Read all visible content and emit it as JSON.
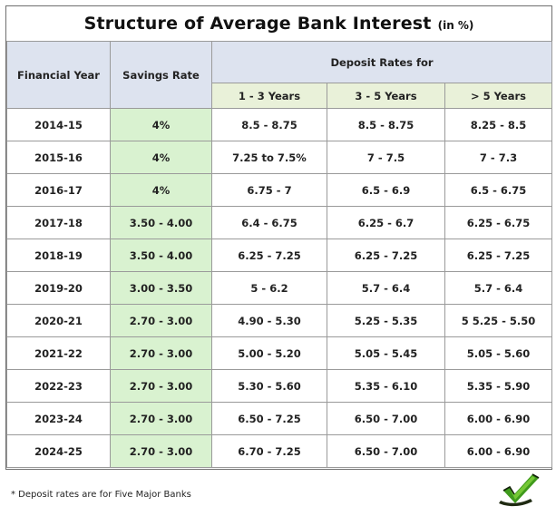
{
  "title": "Structure of Average Bank Interest",
  "title_unit": "(in %)",
  "headers": {
    "financial_year": "Financial Year",
    "savings_rate": "Savings Rate",
    "deposit_rates": "Deposit Rates for",
    "col_1_3": "1 - 3 Years",
    "col_3_5": "3 - 5 Years",
    "col_5plus": "> 5 Years"
  },
  "rows": [
    {
      "year": "2014-15",
      "savings": "4%",
      "d13": "8.5 - 8.75",
      "d35": "8.5 - 8.75",
      "d5": "8.25 - 8.5"
    },
    {
      "year": "2015-16",
      "savings": "4%",
      "d13": "7.25 to 7.5%",
      "d35": "7 - 7.5",
      "d5": "7 - 7.3"
    },
    {
      "year": "2016-17",
      "savings": "4%",
      "d13": "6.75 - 7",
      "d35": "6.5 - 6.9",
      "d5": "6.5 - 6.75"
    },
    {
      "year": "2017-18",
      "savings": "3.50 - 4.00",
      "d13": "6.4 - 6.75",
      "d35": "6.25 - 6.7",
      "d5": "6.25 - 6.75"
    },
    {
      "year": "2018-19",
      "savings": "3.50 - 4.00",
      "d13": "6.25 - 7.25",
      "d35": "6.25 - 7.25",
      "d5": "6.25 - 7.25"
    },
    {
      "year": "2019-20",
      "savings": "3.00 - 3.50",
      "d13": "5 - 6.2",
      "d35": "5.7 - 6.4",
      "d5": "5.7 - 6.4"
    },
    {
      "year": "2020-21",
      "savings": "2.70 - 3.00",
      "d13": "4.90 - 5.30",
      "d35": "5.25 - 5.35",
      "d5": "5 5.25 - 5.50"
    },
    {
      "year": "2021-22",
      "savings": "2.70 - 3.00",
      "d13": "5.00 - 5.20",
      "d35": "5.05 - 5.45",
      "d5": "5.05 - 5.60"
    },
    {
      "year": "2022-23",
      "savings": "2.70 - 3.00",
      "d13": "5.30 - 5.60",
      "d35": "5.35 - 6.10",
      "d5": "5.35 - 5.90"
    },
    {
      "year": "2023-24",
      "savings": "2.70 - 3.00",
      "d13": "6.50 - 7.25",
      "d35": "6.50 - 7.00",
      "d5": "6.00 - 6.90"
    },
    {
      "year": "2024-25",
      "savings": "2.70 - 3.00",
      "d13": "6.70 - 7.25",
      "d35": "6.50 - 7.00",
      "d5": "6.00 - 6.90"
    }
  ],
  "footnote": "* Deposit  rates are for Five Major Banks",
  "logo_icon": "green-checkmark-logo-icon",
  "colors": {
    "header_bg": "#dde3ef",
    "subheader_bg": "#e9f1d9",
    "savings_bg": "#d9f2d0",
    "border": "#9a9a9a"
  }
}
